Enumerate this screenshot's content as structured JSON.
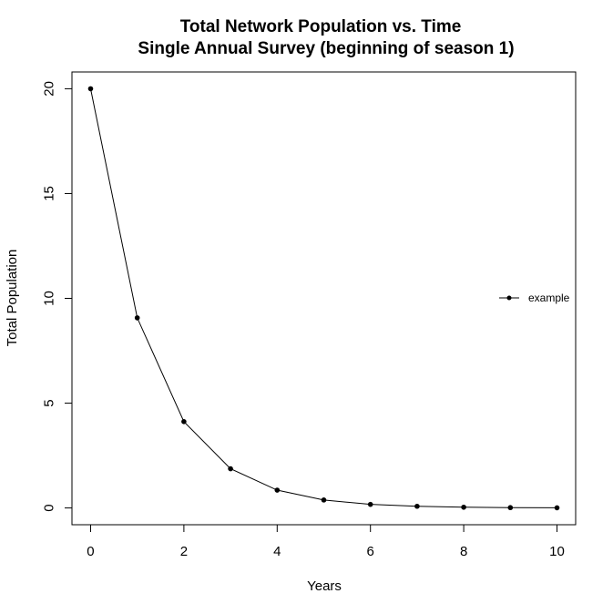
{
  "chart_data": {
    "type": "line",
    "title": "Total Network Population vs. Time",
    "subtitle": "Single Annual Survey (beginning of season 1)",
    "xlabel": "Years",
    "ylabel": "Total Population",
    "xlim": [
      -0.4,
      10.4
    ],
    "ylim": [
      -0.8,
      20.8
    ],
    "xticks": [
      0,
      2,
      4,
      6,
      8,
      10
    ],
    "yticks": [
      0,
      5,
      10,
      15,
      20
    ],
    "grid": false,
    "legend_position": "right",
    "series": [
      {
        "name": "example",
        "color": "#000000",
        "marker": "filled-circle",
        "x": [
          0,
          1,
          2,
          3,
          4,
          5,
          6,
          7,
          8,
          9,
          10
        ],
        "y": [
          20,
          9.07,
          4.12,
          1.87,
          0.85,
          0.38,
          0.17,
          0.08,
          0.035,
          0.016,
          0.007
        ]
      }
    ]
  }
}
